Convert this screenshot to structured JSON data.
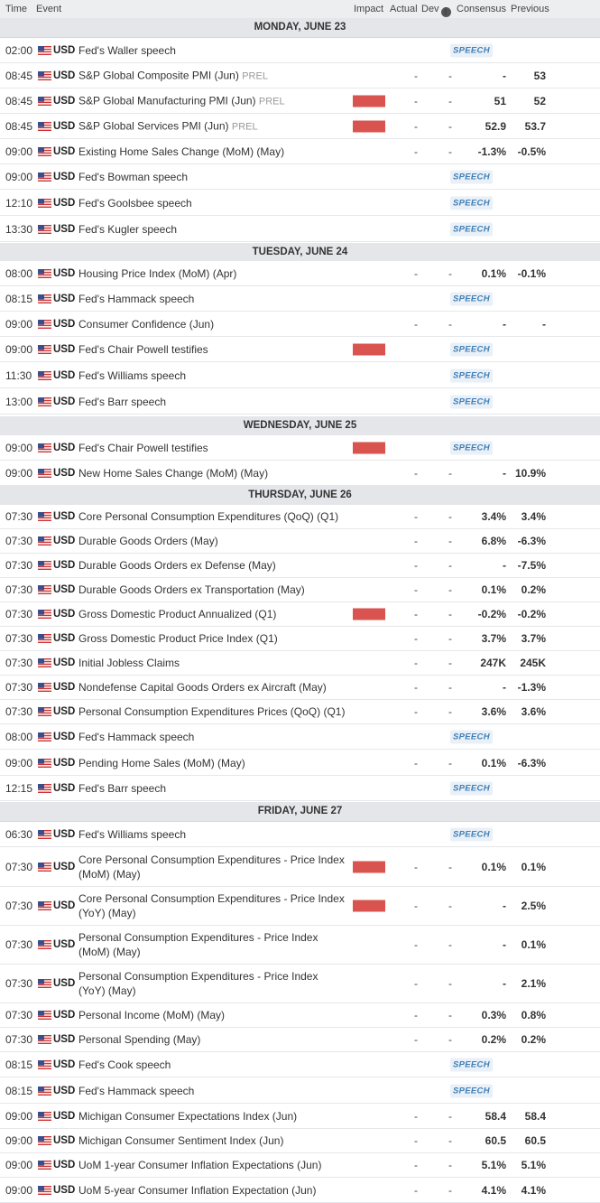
{
  "header": {
    "time": "Time",
    "event": "Event",
    "impact": "Impact",
    "actual": "Actual",
    "dev": "Dev",
    "consensus": "Consensus",
    "previous": "Previous"
  },
  "colors": {
    "high": "#d9534f",
    "medium": "#e8901e",
    "speech_text": "#3f7fb5"
  },
  "days": [
    {
      "label": "MONDAY, JUNE 23",
      "events": [
        {
          "time": "02:00",
          "currency": "USD",
          "name": "Fed's Waller speech",
          "impact": "medium",
          "speech": "SPEECH"
        },
        {
          "time": "08:45",
          "currency": "USD",
          "name": "S&P Global Composite PMI (Jun)",
          "tag": "PREL",
          "impact": "medium",
          "actual": "-",
          "dev": "-",
          "consensus": "-",
          "previous": "53"
        },
        {
          "time": "08:45",
          "currency": "USD",
          "name": "S&P Global Manufacturing PMI (Jun)",
          "tag": "PREL",
          "impact": "high",
          "actual": "-",
          "dev": "-",
          "consensus": "51",
          "previous": "52"
        },
        {
          "time": "08:45",
          "currency": "USD",
          "name": "S&P Global Services PMI (Jun)",
          "tag": "PREL",
          "impact": "high",
          "actual": "-",
          "dev": "-",
          "consensus": "52.9",
          "previous": "53.7"
        },
        {
          "time": "09:00",
          "currency": "USD",
          "name": "Existing Home Sales Change (MoM) (May)",
          "impact": "medium",
          "actual": "-",
          "dev": "-",
          "consensus": "-1.3%",
          "previous": "-0.5%"
        },
        {
          "time": "09:00",
          "currency": "USD",
          "name": "Fed's Bowman speech",
          "impact": "medium",
          "speech": "SPEECH"
        },
        {
          "time": "12:10",
          "currency": "USD",
          "name": "Fed's Goolsbee speech",
          "impact": "medium",
          "speech": "SPEECH"
        },
        {
          "time": "13:30",
          "currency": "USD",
          "name": "Fed's Kugler speech",
          "impact": "medium",
          "speech": "SPEECH"
        }
      ]
    },
    {
      "label": "TUESDAY, JUNE 24",
      "events": [
        {
          "time": "08:00",
          "currency": "USD",
          "name": "Housing Price Index (MoM) (Apr)",
          "impact": "medium",
          "actual": "-",
          "dev": "-",
          "consensus": "0.1%",
          "previous": "-0.1%"
        },
        {
          "time": "08:15",
          "currency": "USD",
          "name": "Fed's Hammack speech",
          "impact": "medium",
          "speech": "SPEECH"
        },
        {
          "time": "09:00",
          "currency": "USD",
          "name": "Consumer Confidence (Jun)",
          "impact": "medium",
          "actual": "-",
          "dev": "-",
          "consensus": "-",
          "previous": "-"
        },
        {
          "time": "09:00",
          "currency": "USD",
          "name": "Fed's Chair Powell testifies",
          "impact": "high",
          "speech": "SPEECH"
        },
        {
          "time": "11:30",
          "currency": "USD",
          "name": "Fed's Williams speech",
          "impact": "medium",
          "speech": "SPEECH"
        },
        {
          "time": "13:00",
          "currency": "USD",
          "name": "Fed's Barr speech",
          "impact": "medium",
          "speech": "SPEECH"
        }
      ]
    },
    {
      "label": "WEDNESDAY, JUNE 25",
      "events": [
        {
          "time": "09:00",
          "currency": "USD",
          "name": "Fed's Chair Powell testifies",
          "impact": "high",
          "speech": "SPEECH"
        },
        {
          "time": "09:00",
          "currency": "USD",
          "name": "New Home Sales Change (MoM) (May)",
          "impact": "medium",
          "actual": "-",
          "dev": "-",
          "consensus": "-",
          "previous": "10.9%"
        }
      ]
    },
    {
      "label": "THURSDAY, JUNE 26",
      "events": [
        {
          "time": "07:30",
          "currency": "USD",
          "name": "Core Personal Consumption Expenditures (QoQ) (Q1)",
          "impact": "medium",
          "actual": "-",
          "dev": "-",
          "consensus": "3.4%",
          "previous": "3.4%"
        },
        {
          "time": "07:30",
          "currency": "USD",
          "name": "Durable Goods Orders (May)",
          "impact": "medium",
          "actual": "-",
          "dev": "-",
          "consensus": "6.8%",
          "previous": "-6.3%"
        },
        {
          "time": "07:30",
          "currency": "USD",
          "name": "Durable Goods Orders ex Defense (May)",
          "impact": "medium",
          "actual": "-",
          "dev": "-",
          "consensus": "-",
          "previous": "-7.5%"
        },
        {
          "time": "07:30",
          "currency": "USD",
          "name": "Durable Goods Orders ex Transportation (May)",
          "impact": "medium",
          "actual": "-",
          "dev": "-",
          "consensus": "0.1%",
          "previous": "0.2%"
        },
        {
          "time": "07:30",
          "currency": "USD",
          "name": "Gross Domestic Product Annualized (Q1)",
          "impact": "high",
          "actual": "-",
          "dev": "-",
          "consensus": "-0.2%",
          "previous": "-0.2%"
        },
        {
          "time": "07:30",
          "currency": "USD",
          "name": "Gross Domestic Product Price Index (Q1)",
          "impact": "medium",
          "actual": "-",
          "dev": "-",
          "consensus": "3.7%",
          "previous": "3.7%"
        },
        {
          "time": "07:30",
          "currency": "USD",
          "name": "Initial Jobless Claims",
          "impact": "medium",
          "actual": "-",
          "dev": "-",
          "consensus": "247K",
          "previous": "245K"
        },
        {
          "time": "07:30",
          "currency": "USD",
          "name": "Nondefense Capital Goods Orders ex Aircraft (May)",
          "impact": "medium",
          "actual": "-",
          "dev": "-",
          "consensus": "-",
          "previous": "-1.3%"
        },
        {
          "time": "07:30",
          "currency": "USD",
          "name": "Personal Consumption Expenditures Prices (QoQ) (Q1)",
          "impact": "medium",
          "actual": "-",
          "dev": "-",
          "consensus": "3.6%",
          "previous": "3.6%"
        },
        {
          "time": "08:00",
          "currency": "USD",
          "name": "Fed's Hammack speech",
          "impact": "medium",
          "speech": "SPEECH"
        },
        {
          "time": "09:00",
          "currency": "USD",
          "name": "Pending Home Sales (MoM) (May)",
          "impact": "medium",
          "actual": "-",
          "dev": "-",
          "consensus": "0.1%",
          "previous": "-6.3%"
        },
        {
          "time": "12:15",
          "currency": "USD",
          "name": "Fed's Barr speech",
          "impact": "medium",
          "speech": "SPEECH"
        }
      ]
    },
    {
      "label": "FRIDAY, JUNE 27",
      "events": [
        {
          "time": "06:30",
          "currency": "USD",
          "name": "Fed's Williams speech",
          "impact": "medium",
          "speech": "SPEECH"
        },
        {
          "time": "07:30",
          "currency": "USD",
          "name": "Core Personal Consumption Expenditures - Price Index (MoM) (May)",
          "impact": "high",
          "actual": "-",
          "dev": "-",
          "consensus": "0.1%",
          "previous": "0.1%"
        },
        {
          "time": "07:30",
          "currency": "USD",
          "name": "Core Personal Consumption Expenditures - Price Index (YoY) (May)",
          "impact": "high",
          "actual": "-",
          "dev": "-",
          "consensus": "-",
          "previous": "2.5%"
        },
        {
          "time": "07:30",
          "currency": "USD",
          "name": "Personal Consumption Expenditures - Price Index (MoM) (May)",
          "impact": "medium",
          "actual": "-",
          "dev": "-",
          "consensus": "-",
          "previous": "0.1%"
        },
        {
          "time": "07:30",
          "currency": "USD",
          "name": "Personal Consumption Expenditures - Price Index (YoY) (May)",
          "impact": "medium",
          "actual": "-",
          "dev": "-",
          "consensus": "-",
          "previous": "2.1%"
        },
        {
          "time": "07:30",
          "currency": "USD",
          "name": "Personal Income (MoM) (May)",
          "impact": "medium",
          "actual": "-",
          "dev": "-",
          "consensus": "0.3%",
          "previous": "0.8%"
        },
        {
          "time": "07:30",
          "currency": "USD",
          "name": "Personal Spending (May)",
          "impact": "medium",
          "actual": "-",
          "dev": "-",
          "consensus": "0.2%",
          "previous": "0.2%"
        },
        {
          "time": "08:15",
          "currency": "USD",
          "name": "Fed's Cook speech",
          "impact": "medium",
          "speech": "SPEECH"
        },
        {
          "time": "08:15",
          "currency": "USD",
          "name": "Fed's Hammack speech",
          "impact": "medium",
          "speech": "SPEECH"
        },
        {
          "time": "09:00",
          "currency": "USD",
          "name": "Michigan Consumer Expectations Index (Jun)",
          "impact": "medium",
          "actual": "-",
          "dev": "-",
          "consensus": "58.4",
          "previous": "58.4"
        },
        {
          "time": "09:00",
          "currency": "USD",
          "name": "Michigan Consumer Sentiment Index (Jun)",
          "impact": "medium",
          "actual": "-",
          "dev": "-",
          "consensus": "60.5",
          "previous": "60.5"
        },
        {
          "time": "09:00",
          "currency": "USD",
          "name": "UoM 1-year Consumer Inflation Expectations (Jun)",
          "impact": "medium",
          "actual": "-",
          "dev": "-",
          "consensus": "5.1%",
          "previous": "5.1%"
        },
        {
          "time": "09:00",
          "currency": "USD",
          "name": "UoM 5-year Consumer Inflation Expectation (Jun)",
          "impact": "medium",
          "actual": "-",
          "dev": "-",
          "consensus": "4.1%",
          "previous": "4.1%"
        }
      ]
    }
  ]
}
